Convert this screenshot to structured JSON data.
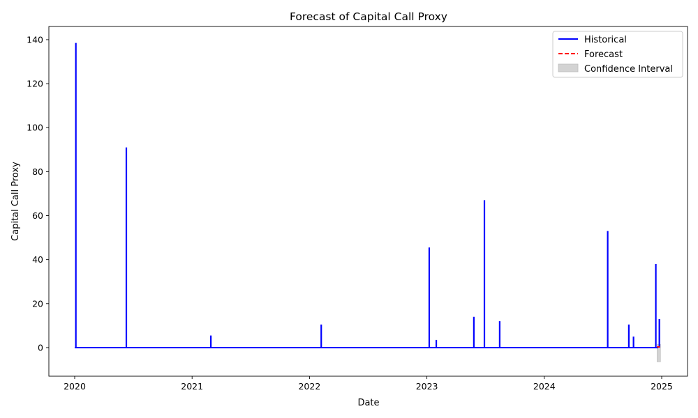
{
  "chart_data": {
    "type": "line",
    "title": "Forecast of Capital Call Proxy",
    "xlabel": "Date",
    "ylabel": "Capital Call Proxy",
    "xlim": [
      2019.78,
      2025.22
    ],
    "ylim": [
      -13,
      146
    ],
    "x_ticks": [
      2020,
      2021,
      2022,
      2023,
      2024,
      2025
    ],
    "x_tick_labels": [
      "2020",
      "2021",
      "2022",
      "2023",
      "2024",
      "2025"
    ],
    "y_ticks": [
      0,
      20,
      40,
      60,
      80,
      100,
      120,
      140
    ],
    "y_tick_labels": [
      "0",
      "20",
      "40",
      "60",
      "80",
      "100",
      "120",
      "140"
    ],
    "grid": false,
    "legend_position": "top-right",
    "legend": [
      {
        "label": "Historical",
        "kind": "line",
        "color": "#0000ff"
      },
      {
        "label": "Forecast",
        "kind": "dashed",
        "color": "#ff0000"
      },
      {
        "label": "Confidence Interval",
        "kind": "patch",
        "color": "#d3d3d3"
      }
    ],
    "series": [
      {
        "name": "Historical",
        "color": "#0000ff",
        "baseline": 0,
        "range": [
          2020.0,
          2024.97
        ],
        "spikes": [
          {
            "x": 2020.01,
            "y": 138.5
          },
          {
            "x": 2020.44,
            "y": 91
          },
          {
            "x": 2021.16,
            "y": 5.5
          },
          {
            "x": 2022.1,
            "y": 10.5
          },
          {
            "x": 2023.02,
            "y": 45.5
          },
          {
            "x": 2023.08,
            "y": 3.5
          },
          {
            "x": 2023.4,
            "y": 14
          },
          {
            "x": 2023.49,
            "y": 67
          },
          {
            "x": 2023.62,
            "y": 12
          },
          {
            "x": 2024.54,
            "y": 53
          },
          {
            "x": 2024.72,
            "y": 10.5
          },
          {
            "x": 2024.76,
            "y": 5
          },
          {
            "x": 2024.95,
            "y": 38
          },
          {
            "x": 2024.98,
            "y": 13
          }
        ]
      },
      {
        "name": "Forecast",
        "color": "#ff0000",
        "x": [
          2024.96,
          2024.99
        ],
        "y": [
          0.3,
          0.3
        ]
      }
    ],
    "confidence_interval": {
      "x": [
        2024.96,
        2024.99
      ],
      "lower": [
        -6.5,
        -6.5
      ],
      "upper": [
        1.5,
        1.5
      ],
      "color": "#d3d3d3"
    }
  }
}
